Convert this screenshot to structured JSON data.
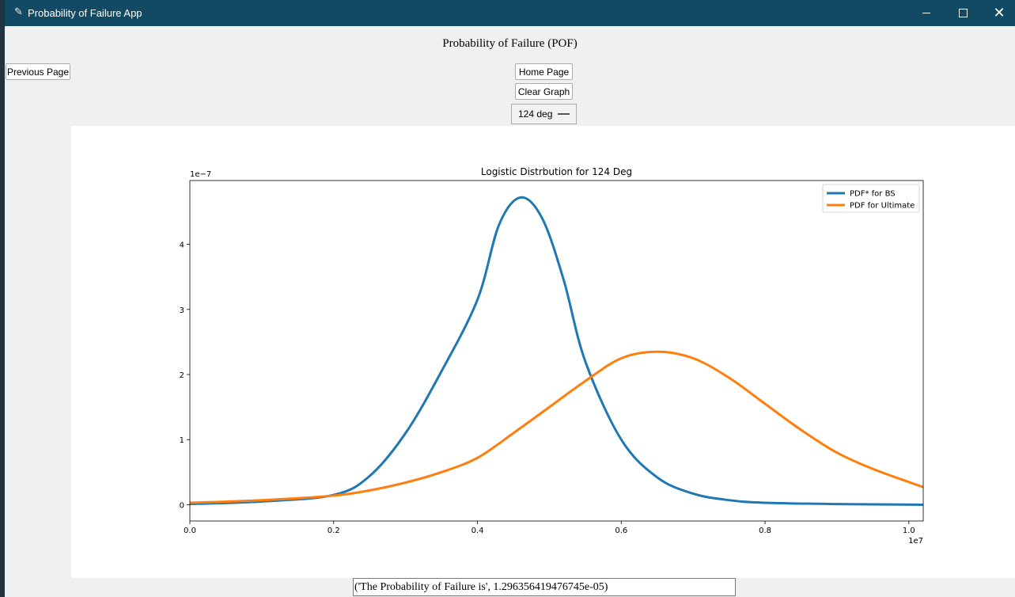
{
  "window": {
    "title": "Probability of Failure App"
  },
  "page": {
    "title": "Probability of Failure (POF)",
    "previous_label": "Previous Page",
    "home_label": "Home Page",
    "clear_label": "Clear Graph",
    "dropdown_value": "124 deg",
    "result_text": "('The Probability of Failure is', 1.296356419476745e-05)"
  },
  "chart_data": {
    "type": "line",
    "title": "Logistic Distrbution for 124 Deg",
    "x_scale_label": "1e7",
    "y_scale_label": "1e−7",
    "xlim": [
      0,
      1.02
    ],
    "ylim": [
      -0.25,
      4.98
    ],
    "x_ticks": [
      "0.0",
      "0.2",
      "0.4",
      "0.6",
      "0.8",
      "1.0"
    ],
    "y_ticks": [
      "0",
      "1",
      "2",
      "3",
      "4"
    ],
    "legend_position": "top-right",
    "series": [
      {
        "name": "PDF* for BS",
        "color": "#1f77b4",
        "x": [
          0.0,
          0.1,
          0.2,
          0.25,
          0.3,
          0.35,
          0.4,
          0.43,
          0.46,
          0.49,
          0.52,
          0.55,
          0.6,
          0.65,
          0.7,
          0.75,
          0.8,
          0.9,
          1.02
        ],
        "y": [
          0.01,
          0.05,
          0.15,
          0.44,
          1.1,
          2.05,
          3.15,
          4.3,
          4.72,
          4.4,
          3.45,
          2.2,
          1.0,
          0.42,
          0.17,
          0.07,
          0.03,
          0.01,
          0.0
        ]
      },
      {
        "name": "PDF for Ultimate",
        "color": "#ff7f0e",
        "x": [
          0.0,
          0.1,
          0.2,
          0.25,
          0.3,
          0.35,
          0.4,
          0.45,
          0.5,
          0.55,
          0.6,
          0.65,
          0.7,
          0.75,
          0.8,
          0.85,
          0.9,
          0.95,
          1.02
        ],
        "y": [
          0.03,
          0.07,
          0.14,
          0.22,
          0.34,
          0.5,
          0.72,
          1.1,
          1.5,
          1.9,
          2.25,
          2.35,
          2.25,
          1.95,
          1.55,
          1.15,
          0.8,
          0.55,
          0.27
        ]
      }
    ]
  }
}
